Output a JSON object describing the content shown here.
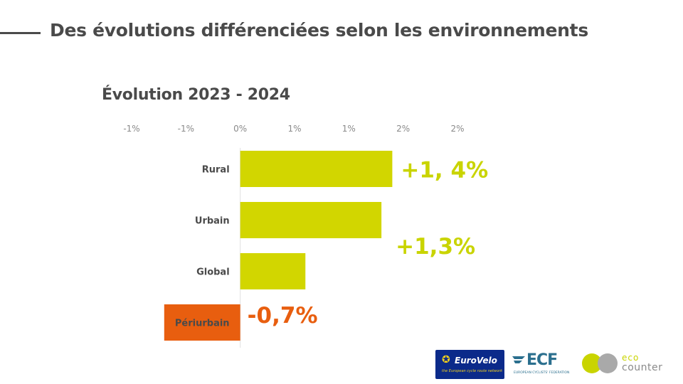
{
  "header": {
    "title": "Des évolutions différenciées selon les environnements"
  },
  "chart_data": {
    "type": "bar",
    "orientation": "horizontal",
    "title": "Évolution 2023 - 2024",
    "categories": [
      "Rural",
      "Urbain",
      "Global",
      "Périurbain"
    ],
    "values": [
      1.4,
      1.3,
      0.6,
      -0.7
    ],
    "data_labels": [
      "+1, 4%",
      "+1,3%",
      "",
      "-0,7%"
    ],
    "x_tick_labels": [
      "-1%",
      "-1%",
      "0%",
      "1%",
      "1%",
      "2%",
      "2%"
    ],
    "x_ticks": [
      -1.0,
      -0.5,
      0.0,
      0.5,
      1.0,
      1.5,
      2.0
    ],
    "xlim": [
      -1.0,
      2.0
    ],
    "grid": false,
    "legend": "none",
    "colors": {
      "positive": "#d2d600",
      "negative": "#e85e0f",
      "label_positive": "#c9d400",
      "label_negative": "#e85e0f"
    }
  },
  "logos": {
    "eurovelo": {
      "name": "EuroVelo",
      "tagline": "the European cycle route network"
    },
    "ecf": {
      "name": "ECF",
      "tagline": "EUROPEAN CYCLISTS' FEDERATION"
    },
    "ecocounter": {
      "line1": "eco",
      "line2": "counter"
    }
  }
}
